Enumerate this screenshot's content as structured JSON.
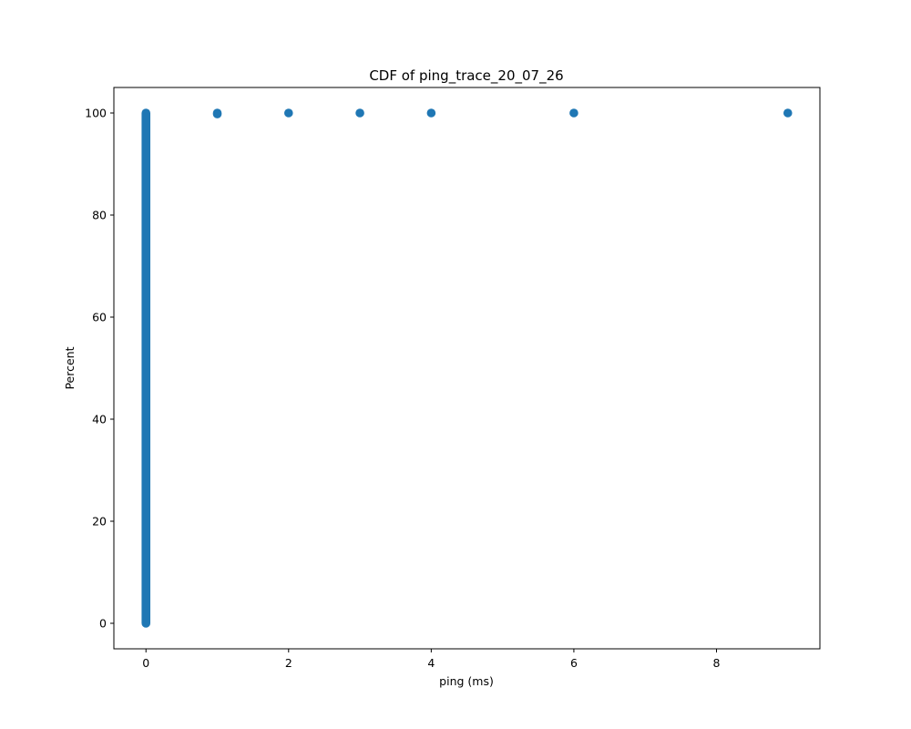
{
  "chart_data": {
    "type": "scatter",
    "title": "CDF of ping_trace_20_07_26",
    "xlabel": "ping (ms)",
    "ylabel": "Percent",
    "xlim": [
      -0.45,
      9.45
    ],
    "ylim": [
      -5,
      105
    ],
    "x_ticks": [
      0,
      2,
      4,
      6,
      8
    ],
    "y_ticks": [
      0,
      20,
      40,
      60,
      80,
      100
    ],
    "grid": false,
    "legend": "none",
    "series": [
      {
        "color": "#1f77b4",
        "dense_columns": [
          {
            "x": 0,
            "y_from": 0,
            "y_to": 100
          },
          {
            "x": 1,
            "y_from": 99.8,
            "y_to": 100
          }
        ],
        "points": [
          {
            "x": 2,
            "y": 100
          },
          {
            "x": 3,
            "y": 100
          },
          {
            "x": 4,
            "y": 100
          },
          {
            "x": 6,
            "y": 100
          },
          {
            "x": 9,
            "y": 100
          }
        ]
      }
    ]
  }
}
